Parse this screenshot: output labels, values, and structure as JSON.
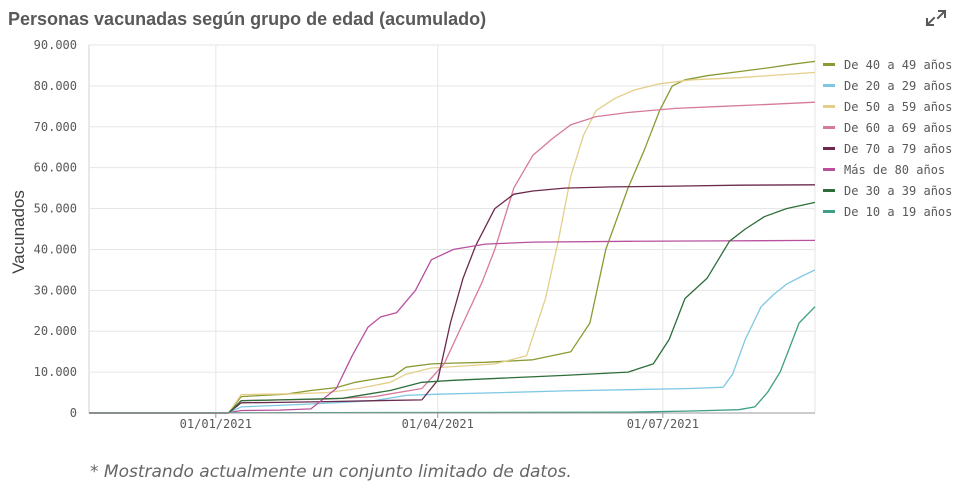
{
  "header": {
    "title": "Personas vacunadas según grupo de edad (acumulado)",
    "expand_icon": "expand-icon"
  },
  "footnote": "* Mostrando actualmente un conjunto limitado de datos.",
  "chart_data": {
    "type": "line",
    "title": "Personas vacunadas según grupo de edad (acumulado)",
    "xlabel": "",
    "ylabel": "Vacunados",
    "xlim": [
      0,
      229
    ],
    "ylim": [
      0,
      90000
    ],
    "yticks": [
      0,
      10000,
      20000,
      30000,
      40000,
      50000,
      60000,
      70000,
      80000,
      90000
    ],
    "ytick_labels": [
      "0",
      "10.000",
      "20.000",
      "30.000",
      "40.000",
      "50.000",
      "60.000",
      "70.000",
      "80.000",
      "90.000"
    ],
    "xticks": [
      40,
      110,
      181
    ],
    "xtick_labels": [
      "01/01/2021",
      "01/04/2021",
      "01/07/2021"
    ],
    "grid": true,
    "legend_position": "right",
    "series": [
      {
        "name": "De 40 a 49 años",
        "color": "#8a9a33",
        "x": [
          0,
          44,
          48,
          55,
          62,
          70,
          78,
          84,
          90,
          96,
          100,
          108,
          115,
          125,
          140,
          152,
          158,
          163,
          170,
          175,
          180,
          184,
          188,
          195,
          205,
          215,
          222,
          229
        ],
        "y": [
          0,
          0,
          4000,
          4300,
          4600,
          5500,
          6200,
          7500,
          8300,
          9000,
          11200,
          12000,
          12200,
          12400,
          13000,
          15000,
          22000,
          40000,
          55000,
          64000,
          74000,
          80000,
          81500,
          82500,
          83500,
          84500,
          85300,
          86000
        ]
      },
      {
        "name": "De 20 a 29 años",
        "color": "#7ec8e3",
        "x": [
          0,
          44,
          48,
          70,
          90,
          100,
          110,
          130,
          150,
          170,
          190,
          200,
          203,
          207,
          212,
          216,
          220,
          225,
          229
        ],
        "y": [
          0,
          0,
          1500,
          2200,
          3000,
          4300,
          4600,
          5000,
          5400,
          5700,
          6000,
          6300,
          9500,
          18000,
          26000,
          29000,
          31500,
          33500,
          35000
        ]
      },
      {
        "name": "De 50 a 59 años",
        "color": "#e4cf8a",
        "x": [
          0,
          44,
          48,
          55,
          65,
          75,
          85,
          95,
          100,
          108,
          118,
          128,
          138,
          144,
          148,
          152,
          156,
          160,
          166,
          172,
          180,
          190,
          205,
          220,
          229
        ],
        "y": [
          0,
          0,
          4500,
          4600,
          4700,
          5000,
          6000,
          7500,
          9500,
          11000,
          11500,
          12000,
          14000,
          28000,
          42000,
          58000,
          68000,
          74000,
          77000,
          79000,
          80500,
          81500,
          82000,
          82800,
          83300
        ]
      },
      {
        "name": "De 60 a 69 años",
        "color": "#d67a9b",
        "x": [
          0,
          44,
          48,
          60,
          75,
          90,
          105,
          112,
          118,
          124,
          128,
          134,
          140,
          146,
          152,
          160,
          170,
          185,
          200,
          215,
          229
        ],
        "y": [
          0,
          0,
          3000,
          3200,
          3400,
          4000,
          6000,
          12000,
          22000,
          32000,
          40000,
          55000,
          63000,
          67000,
          70500,
          72500,
          73500,
          74500,
          75000,
          75500,
          76000
        ]
      },
      {
        "name": "De 70 a 79 años",
        "color": "#6b2a4c",
        "x": [
          0,
          44,
          48,
          60,
          75,
          90,
          105,
          110,
          114,
          118,
          122,
          128,
          134,
          140,
          150,
          165,
          185,
          205,
          229
        ],
        "y": [
          0,
          0,
          2500,
          2600,
          2800,
          3000,
          3200,
          8000,
          22000,
          33000,
          41000,
          50000,
          53500,
          54300,
          55000,
          55300,
          55500,
          55700,
          55800
        ]
      },
      {
        "name": "Más de 80 años",
        "color": "#b8509e",
        "x": [
          0,
          44,
          48,
          60,
          70,
          78,
          83,
          88,
          92,
          97,
          103,
          108,
          115,
          125,
          140,
          170,
          200,
          229
        ],
        "y": [
          0,
          0,
          600,
          700,
          1000,
          6000,
          14000,
          21000,
          23500,
          24500,
          30000,
          37500,
          40000,
          41300,
          41800,
          42000,
          42100,
          42200
        ]
      },
      {
        "name": "De 30 a 39 años",
        "color": "#2e6e3a",
        "x": [
          0,
          44,
          48,
          60,
          80,
          95,
          105,
          115,
          130,
          150,
          170,
          178,
          183,
          188,
          195,
          202,
          207,
          213,
          220,
          229
        ],
        "y": [
          0,
          0,
          3000,
          3200,
          3600,
          5500,
          7500,
          8000,
          8500,
          9200,
          10000,
          12000,
          18000,
          28000,
          33000,
          42000,
          45000,
          48000,
          50000,
          51500
        ]
      },
      {
        "name": "De 10 a 19 años",
        "color": "#3f9e86",
        "x": [
          0,
          170,
          190,
          205,
          210,
          214,
          218,
          221,
          224,
          229
        ],
        "y": [
          0,
          200,
          500,
          800,
          1500,
          5000,
          10000,
          16000,
          22000,
          26000
        ]
      }
    ]
  }
}
